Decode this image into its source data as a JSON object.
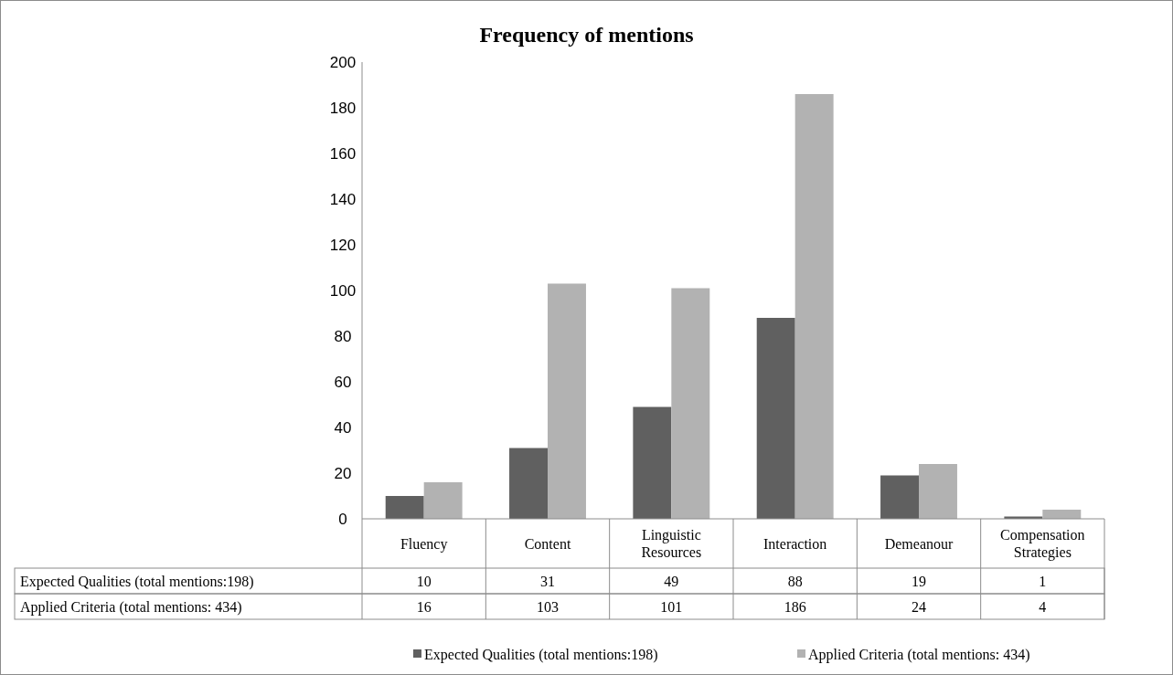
{
  "chart_data": {
    "type": "bar",
    "title": "Frequency of mentions",
    "categories": [
      "Fluency",
      "Content",
      "Linguistic Resources",
      "Interaction",
      "Demeanour",
      "Compensation Strategies"
    ],
    "series": [
      {
        "name": "Expected Qualities (total mentions:198)",
        "color": "#606060",
        "values": [
          10,
          31,
          49,
          88,
          19,
          1
        ]
      },
      {
        "name": "Applied Criteria (total mentions: 434)",
        "color": "#b2b2b2",
        "values": [
          16,
          103,
          101,
          186,
          24,
          4
        ]
      }
    ],
    "ylim": [
      0,
      200
    ],
    "yticks": [
      0,
      20,
      40,
      60,
      80,
      100,
      120,
      140,
      160,
      180,
      200
    ],
    "grid": false,
    "legend": "bottom",
    "data_labels": true
  }
}
